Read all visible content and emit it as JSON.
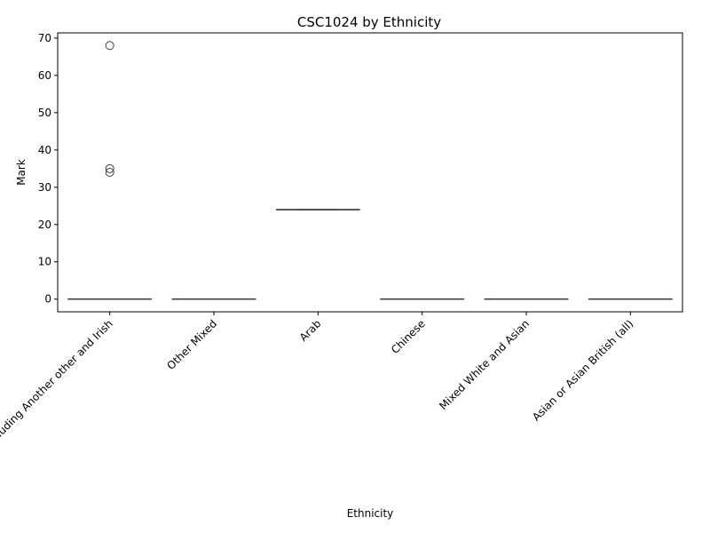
{
  "chart_data": {
    "type": "box",
    "title": "CSC1024 by Ethnicity",
    "xlabel": "Ethnicity",
    "ylabel": "Mark",
    "ylim": [
      -3.4,
      71.4
    ],
    "yticks": [
      0,
      10,
      20,
      30,
      40,
      50,
      60,
      70
    ],
    "grid": false,
    "categories": [
      "White including Another other and Irish",
      "Other Mixed",
      "Arab",
      "Chinese",
      "Mixed White and Asian",
      "Asian or Asian British (all)"
    ],
    "boxes": [
      {
        "min": 0,
        "q1": 0,
        "median": 0,
        "q3": 0,
        "max": 0,
        "outliers": [
          68,
          35,
          34
        ]
      },
      {
        "min": 0,
        "q1": 0,
        "median": 0,
        "q3": 0,
        "max": 0,
        "outliers": []
      },
      {
        "min": 24,
        "q1": 24,
        "median": 24,
        "q3": 24,
        "max": 24,
        "outliers": []
      },
      {
        "min": 0,
        "q1": 0,
        "median": 0,
        "q3": 0,
        "max": 0,
        "outliers": []
      },
      {
        "min": 0,
        "q1": 0,
        "median": 0,
        "q3": 0,
        "max": 0,
        "outliers": []
      },
      {
        "min": 0,
        "q1": 0,
        "median": 0,
        "q3": 0,
        "max": 0,
        "outliers": []
      }
    ],
    "colors": {
      "box_edge": "#3f3f3f",
      "outlier_edge": "#3f3f3f",
      "axis": "#000000"
    }
  }
}
